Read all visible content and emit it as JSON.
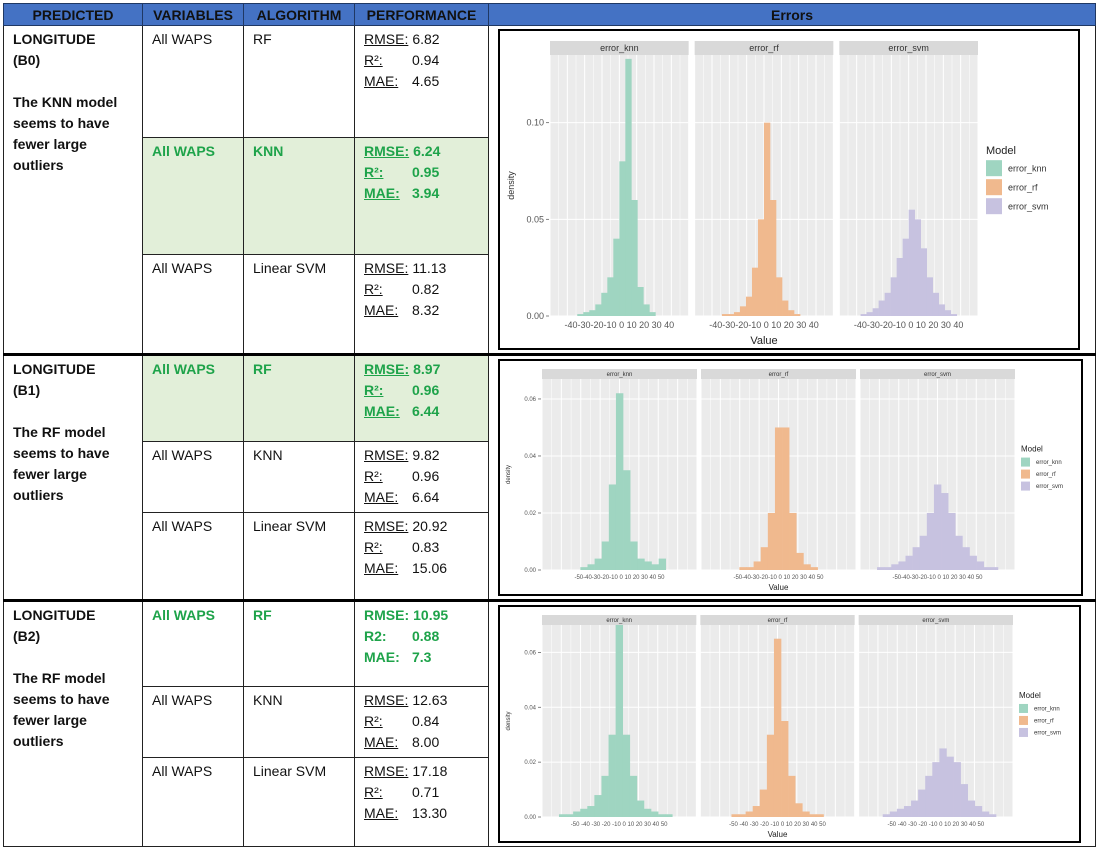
{
  "headers": [
    "PREDICTED",
    "VARIABLES",
    "ALGORITHM",
    "PERFORMANCE",
    "Errors"
  ],
  "sections": [
    {
      "predicted_line1": "LONGITUDE",
      "predicted_line2": "(B0)",
      "predicted_note": [
        "The KNN model",
        "seems to have",
        "fewer large",
        "outliers"
      ],
      "rows": [
        {
          "variables": "All WAPS",
          "algorithm": "RF",
          "best": false,
          "perf": [
            [
              "RMSE:",
              "6.82"
            ],
            [
              "R²:",
              "0.94"
            ],
            [
              "MAE:",
              "4.65"
            ]
          ]
        },
        {
          "variables": "All WAPS",
          "algorithm": "KNN",
          "best": true,
          "perf": [
            [
              "RMSE:",
              "6.24"
            ],
            [
              "R²:",
              "0.95"
            ],
            [
              "MAE:",
              "3.94"
            ]
          ]
        },
        {
          "variables": "All WAPS",
          "algorithm": "Linear SVM",
          "best": false,
          "perf": [
            [
              "RMSE:",
              "11.13"
            ],
            [
              "R²:",
              "0.82"
            ],
            [
              "MAE:",
              "8.32"
            ]
          ]
        }
      ]
    },
    {
      "predicted_line1": "LONGITUDE",
      "predicted_line2": "(B1)",
      "predicted_note": [
        "The RF model",
        "seems to have",
        "fewer large",
        "outliers"
      ],
      "rows": [
        {
          "variables": "All WAPS",
          "algorithm": "RF",
          "best": true,
          "perf": [
            [
              "RMSE:",
              "8.97"
            ],
            [
              "R²:",
              "0.96"
            ],
            [
              "MAE:",
              "6.44"
            ]
          ]
        },
        {
          "variables": "All WAPS",
          "algorithm": "KNN",
          "best": false,
          "perf": [
            [
              "RMSE:",
              "9.82"
            ],
            [
              "R²:",
              "0.96"
            ],
            [
              "MAE:",
              "6.64"
            ]
          ]
        },
        {
          "variables": "All WAPS",
          "algorithm": "Linear SVM",
          "best": false,
          "perf": [
            [
              "RMSE:",
              "20.92"
            ],
            [
              "R²:",
              "0.83"
            ],
            [
              "MAE:",
              "15.06"
            ]
          ]
        }
      ]
    },
    {
      "predicted_line1": "LONGITUDE",
      "predicted_line2": "(B2)",
      "predicted_note": [
        "The RF model",
        "seems to have",
        "fewer large",
        "outliers"
      ],
      "rows": [
        {
          "variables": "All WAPS",
          "algorithm": "RF",
          "best": "text",
          "perf": [
            [
              "RMSE:",
              "10.95"
            ],
            [
              "R2:",
              "0.88"
            ],
            [
              "MAE:",
              "7.3"
            ]
          ]
        },
        {
          "variables": "All WAPS",
          "algorithm": "KNN",
          "best": false,
          "perf": [
            [
              "RMSE:",
              "12.63"
            ],
            [
              "R²:",
              "0.84"
            ],
            [
              "MAE:",
              "8.00"
            ]
          ]
        },
        {
          "variables": "All WAPS",
          "algorithm": "Linear SVM",
          "best": false,
          "perf": [
            [
              "RMSE:",
              "17.18"
            ],
            [
              "R²:",
              "0.71"
            ],
            [
              "MAE:",
              "13.30"
            ]
          ]
        }
      ]
    }
  ],
  "colors": {
    "header_bg": "#4472c4",
    "best_bg": "#e2efd9",
    "best_text": "#1ea34a",
    "knn": "#9fd5c1",
    "rf": "#f0b98e",
    "svm": "#c7c2e0"
  },
  "chart_data": [
    {
      "type": "histogram",
      "facets": [
        "error_knn",
        "error_rf",
        "error_svm"
      ],
      "xlabel": "Value",
      "ylabel": "density",
      "legend_title": "Model",
      "legend_position": "right",
      "x_ticks": [
        "-40",
        "-30",
        "-20",
        "-10",
        "0",
        "10",
        "20",
        "30",
        "40"
      ],
      "x_ticklabels": [
        "-40-30-20-10 0",
        "10 20 30 40"
      ],
      "xlim": [
        -45,
        45
      ],
      "ylim": [
        0,
        0.135
      ],
      "y_ticks": [
        0,
        0.05,
        0.1
      ],
      "y_ticklabels": [
        "0.00",
        "0.05",
        "0.10"
      ],
      "series": [
        {
          "name": "error_knn",
          "values": [
            0,
            0,
            0.001,
            0.002,
            0.003,
            0.006,
            0.012,
            0.02,
            0.04,
            0.08,
            0.133,
            0.06,
            0.015,
            0.006,
            0.002,
            0,
            0,
            0
          ]
        },
        {
          "name": "error_rf",
          "values": [
            0,
            0,
            0.001,
            0.001,
            0.002,
            0.005,
            0.01,
            0.025,
            0.05,
            0.1,
            0.06,
            0.02,
            0.008,
            0.003,
            0.001,
            0,
            0,
            0
          ]
        },
        {
          "name": "error_svm",
          "values": [
            0,
            0.001,
            0.002,
            0.004,
            0.008,
            0.012,
            0.02,
            0.03,
            0.04,
            0.055,
            0.05,
            0.035,
            0.02,
            0.012,
            0.006,
            0.003,
            0.001,
            0
          ]
        }
      ]
    },
    {
      "type": "histogram",
      "facets": [
        "error_knn",
        "error_rf",
        "error_svm"
      ],
      "xlabel": "Value",
      "ylabel": "density",
      "legend_title": "Model",
      "legend_position": "right",
      "x_ticklabels": [
        "-50-40-30-20-10 0",
        "10 20 30 40 50"
      ],
      "xlim": [
        -55,
        55
      ],
      "ylim": [
        0,
        0.067
      ],
      "y_ticks": [
        0,
        0.02,
        0.04,
        0.06
      ],
      "y_ticklabels": [
        "0.00",
        "0.02",
        "0.04",
        "0.06"
      ],
      "series": [
        {
          "name": "error_knn",
          "values": [
            0,
            0,
            0,
            0.001,
            0.002,
            0.004,
            0.01,
            0.03,
            0.062,
            0.035,
            0.01,
            0.004,
            0.003,
            0.002,
            0.004,
            0,
            0
          ]
        },
        {
          "name": "error_rf",
          "values": [
            0,
            0,
            0,
            0.001,
            0.001,
            0.003,
            0.008,
            0.02,
            0.05,
            0.05,
            0.02,
            0.006,
            0.002,
            0.001,
            0,
            0,
            0
          ]
        },
        {
          "name": "error_svm",
          "values": [
            0.001,
            0.001,
            0.002,
            0.003,
            0.005,
            0.008,
            0.012,
            0.02,
            0.03,
            0.027,
            0.02,
            0.012,
            0.008,
            0.005,
            0.003,
            0.001,
            0.001
          ]
        }
      ]
    },
    {
      "type": "histogram",
      "facets": [
        "error_knn",
        "error_rf",
        "error_svm"
      ],
      "xlabel": "Value",
      "ylabel": "density",
      "legend_title": "Model",
      "legend_position": "right",
      "x_ticklabels": [
        "-50 -40 -30 -20 -10 0 10 20 30 40 50"
      ],
      "xlim": [
        -55,
        55
      ],
      "ylim": [
        0,
        0.07
      ],
      "y_ticks": [
        0,
        0.02,
        0.04,
        0.06
      ],
      "y_ticklabels": [
        "0.00",
        "0.02",
        "0.04",
        "0.06"
      ],
      "series": [
        {
          "name": "error_knn",
          "values": [
            0.001,
            0.001,
            0.002,
            0.003,
            0.004,
            0.008,
            0.015,
            0.03,
            0.07,
            0.03,
            0.015,
            0.006,
            0.003,
            0.002,
            0.001,
            0.001,
            0
          ]
        },
        {
          "name": "error_rf",
          "values": [
            0,
            0,
            0.001,
            0.001,
            0.002,
            0.004,
            0.01,
            0.03,
            0.065,
            0.035,
            0.015,
            0.005,
            0.002,
            0.001,
            0.001,
            0,
            0
          ]
        },
        {
          "name": "error_svm",
          "values": [
            0,
            0.001,
            0.002,
            0.003,
            0.004,
            0.006,
            0.01,
            0.015,
            0.02,
            0.025,
            0.022,
            0.02,
            0.012,
            0.006,
            0.004,
            0.002,
            0.001
          ]
        }
      ]
    }
  ]
}
